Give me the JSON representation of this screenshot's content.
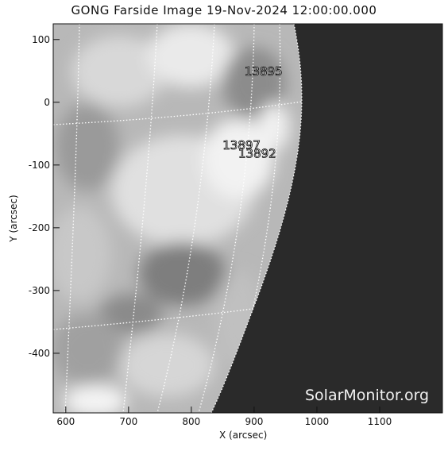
{
  "title": "GONG Farside Image 19-Nov-2024 12:00:00.000",
  "watermark": "SolarMonitor.org",
  "axes": {
    "xlabel": "X (arcsec)",
    "ylabel": "Y (arcsec)",
    "xlim": [
      580,
      1200
    ],
    "ylim": [
      -495,
      125
    ],
    "xticks": [
      "600",
      "700",
      "800",
      "900",
      "1000",
      "1100"
    ],
    "yticks": [
      "100",
      "0",
      "-100",
      "-200",
      "-300",
      "-400"
    ]
  },
  "regions": [
    {
      "label": "13895",
      "x": 915,
      "y": 43
    },
    {
      "label": "13897",
      "x": 880,
      "y": -75
    },
    {
      "label": "13892",
      "x": 905,
      "y": -88
    }
  ],
  "colors": {
    "offdisk": "#2a2a2a",
    "grid": "#ffffff",
    "text": "#111111"
  }
}
